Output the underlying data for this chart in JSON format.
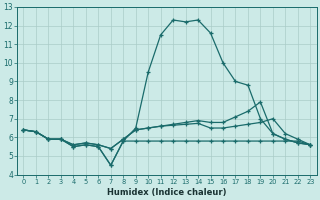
{
  "xlabel": "Humidex (Indice chaleur)",
  "background_color": "#cceae7",
  "grid_color": "#aaccc8",
  "line_color": "#1a6b6b",
  "xlim": [
    -0.5,
    23.5
  ],
  "ylim": [
    4,
    13
  ],
  "xticks": [
    0,
    1,
    2,
    3,
    4,
    5,
    6,
    7,
    8,
    9,
    10,
    11,
    12,
    13,
    14,
    15,
    16,
    17,
    18,
    19,
    20,
    21,
    22,
    23
  ],
  "yticks": [
    4,
    5,
    6,
    7,
    8,
    9,
    10,
    11,
    12,
    13
  ],
  "series": [
    {
      "x": [
        0,
        1,
        2,
        3,
        4,
        5,
        6,
        7,
        8,
        9,
        10,
        11,
        12,
        13,
        14,
        15,
        16,
        17,
        18,
        19,
        20,
        21,
        22,
        23
      ],
      "y": [
        6.4,
        6.3,
        5.9,
        5.9,
        5.5,
        5.6,
        5.5,
        4.5,
        5.8,
        6.5,
        9.5,
        11.5,
        12.3,
        12.2,
        12.3,
        11.6,
        10.0,
        9.0,
        8.8,
        7.0,
        6.2,
        5.9,
        5.7,
        5.6
      ]
    },
    {
      "x": [
        0,
        1,
        2,
        3,
        4,
        5,
        6,
        7,
        8,
        9,
        10,
        11,
        12,
        13,
        14,
        15,
        16,
        17,
        18,
        19,
        20,
        21,
        22,
        23
      ],
      "y": [
        6.4,
        6.3,
        5.9,
        5.9,
        5.6,
        5.7,
        5.6,
        5.4,
        5.9,
        6.4,
        6.5,
        6.6,
        6.7,
        6.8,
        6.9,
        6.8,
        6.8,
        7.1,
        7.4,
        7.9,
        6.2,
        5.9,
        5.7,
        5.6
      ]
    },
    {
      "x": [
        0,
        1,
        2,
        3,
        4,
        5,
        6,
        7,
        8,
        9,
        10,
        11,
        12,
        13,
        14,
        15,
        16,
        17,
        18,
        19,
        20,
        21,
        22,
        23
      ],
      "y": [
        6.4,
        6.3,
        5.9,
        5.9,
        5.6,
        5.7,
        5.6,
        5.4,
        5.9,
        6.4,
        6.5,
        6.6,
        6.65,
        6.7,
        6.75,
        6.5,
        6.5,
        6.6,
        6.7,
        6.8,
        7.0,
        6.2,
        5.9,
        5.6
      ]
    },
    {
      "x": [
        0,
        1,
        2,
        3,
        4,
        5,
        6,
        7,
        8,
        9,
        10,
        11,
        12,
        13,
        14,
        15,
        16,
        17,
        18,
        19,
        20,
        21,
        22,
        23
      ],
      "y": [
        6.4,
        6.3,
        5.9,
        5.9,
        5.5,
        5.6,
        5.5,
        4.5,
        5.8,
        5.8,
        5.8,
        5.8,
        5.8,
        5.8,
        5.8,
        5.8,
        5.8,
        5.8,
        5.8,
        5.8,
        5.8,
        5.8,
        5.8,
        5.6
      ]
    }
  ]
}
